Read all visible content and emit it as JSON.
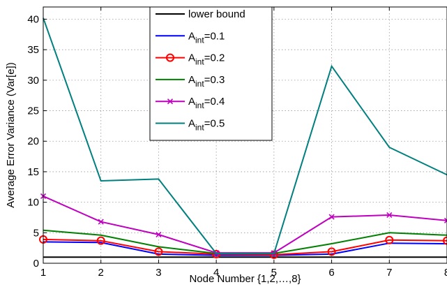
{
  "chart_data": {
    "type": "line",
    "title": "",
    "xlabel": "Node Number {1,2,…,8}",
    "ylabel": "Average Error Variance (Var[e])",
    "x": [
      1,
      2,
      3,
      4,
      5,
      6,
      7,
      8
    ],
    "xlim": [
      1,
      8
    ],
    "ylim": [
      0,
      42
    ],
    "xticks": [
      1,
      2,
      3,
      4,
      5,
      6,
      7,
      8
    ],
    "yticks": [
      0,
      5,
      10,
      15,
      20,
      25,
      30,
      35,
      40
    ],
    "grid": true,
    "legend_position": "top-center",
    "series": [
      {
        "name": "lower bound",
        "legend": {
          "base": "lower bound",
          "sub": "",
          "suffix": ""
        },
        "color": "#000000",
        "marker": "none",
        "values": [
          1,
          1,
          1,
          1,
          1,
          1,
          1,
          1
        ]
      },
      {
        "name": "A_int=0.1",
        "legend": {
          "base": "A",
          "sub": "int",
          "suffix": "=0.1"
        },
        "color": "#0000ff",
        "marker": "none",
        "values": [
          3.5,
          3.4,
          1.5,
          1.3,
          1.3,
          1.5,
          3.3,
          3.2
        ]
      },
      {
        "name": "A_int=0.2",
        "legend": {
          "base": "A",
          "sub": "int",
          "suffix": "=0.2"
        },
        "color": "#ff0000",
        "marker": "circle",
        "values": [
          3.9,
          3.7,
          1.9,
          1.5,
          1.4,
          1.9,
          3.8,
          3.7
        ]
      },
      {
        "name": "A_int=0.3",
        "legend": {
          "base": "A",
          "sub": "int",
          "suffix": "=0.3"
        },
        "color": "#008000",
        "marker": "none",
        "values": [
          5.4,
          4.6,
          2.7,
          1.6,
          1.6,
          3.2,
          5.0,
          4.6
        ]
      },
      {
        "name": "A_int=0.4",
        "legend": {
          "base": "A",
          "sub": "int",
          "suffix": "=0.4"
        },
        "color": "#bf00bf",
        "marker": "x",
        "values": [
          11.0,
          6.8,
          4.7,
          1.7,
          1.7,
          7.6,
          7.9,
          7.0
        ]
      },
      {
        "name": "A_int=0.5",
        "legend": {
          "base": "A",
          "sub": "int",
          "suffix": "=0.5"
        },
        "color": "#007f7f",
        "marker": "none",
        "values": [
          40.2,
          13.5,
          13.8,
          1.6,
          1.6,
          32.3,
          19.0,
          14.5
        ]
      }
    ]
  }
}
